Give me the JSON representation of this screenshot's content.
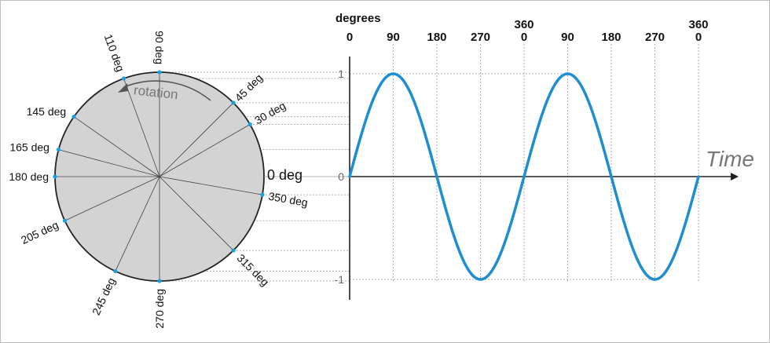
{
  "header": {
    "degrees_label": "degrees",
    "top_ticks": [
      {
        "upper": "",
        "lower": "0"
      },
      {
        "upper": "",
        "lower": "90"
      },
      {
        "upper": "",
        "lower": "180"
      },
      {
        "upper": "",
        "lower": "270"
      },
      {
        "upper": "360",
        "lower": "0"
      },
      {
        "upper": "",
        "lower": "90"
      },
      {
        "upper": "",
        "lower": "180"
      },
      {
        "upper": "",
        "lower": "270"
      },
      {
        "upper": "360",
        "lower": "0"
      }
    ]
  },
  "circle": {
    "rotation_label": "rotation",
    "zero_label": "0 deg",
    "angle_labels": [
      {
        "deg": 90,
        "text": "90 deg"
      },
      {
        "deg": 110,
        "text": "110 deg"
      },
      {
        "deg": 145,
        "text": "145 deg"
      },
      {
        "deg": 165,
        "text": "165 deg"
      },
      {
        "deg": 180,
        "text": "180 deg"
      },
      {
        "deg": 205,
        "text": "205 deg"
      },
      {
        "deg": 245,
        "text": "245 deg"
      },
      {
        "deg": 270,
        "text": "270 deg"
      },
      {
        "deg": 315,
        "text": "315 deg"
      },
      {
        "deg": 350,
        "text": "350 deg"
      },
      {
        "deg": 45,
        "text": "45 deg"
      },
      {
        "deg": 30,
        "text": "30 deg"
      }
    ]
  },
  "graph": {
    "x_axis_label": "Time",
    "y_ticks": [
      {
        "value": 1,
        "text": "1"
      },
      {
        "value": 0,
        "text": "0"
      },
      {
        "value": -1,
        "text": "-1"
      }
    ]
  },
  "colors": {
    "wave": "#1e8ed0",
    "dot": "#1aa0dc",
    "disc": "#d3d3d3"
  }
}
